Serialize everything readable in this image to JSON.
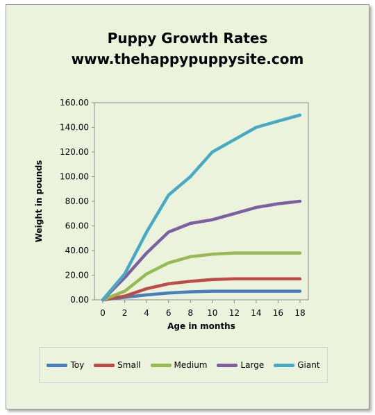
{
  "chart_data": {
    "type": "line",
    "title": "Puppy Growth Rates",
    "subtitle": "www.thehappypuppysite.com",
    "xlabel": "Age in months",
    "ylabel": "Weight in pounds",
    "xlim": [
      0,
      18
    ],
    "ylim": [
      0,
      160
    ],
    "x_ticks": [
      "0",
      "2",
      "4",
      "6",
      "8",
      "10",
      "12",
      "14",
      "16",
      "18"
    ],
    "y_ticks": [
      "0.00",
      "20.00",
      "40.00",
      "60.00",
      "80.00",
      "100.00",
      "120.00",
      "140.00",
      "160.00"
    ],
    "grid": false,
    "legend_position": "bottom",
    "x": [
      0,
      2,
      4,
      6,
      8,
      10,
      12,
      14,
      16,
      18
    ],
    "series": [
      {
        "name": "Toy",
        "color": "#4a7ebb",
        "values": [
          0,
          2,
          4,
          5.5,
          6.5,
          7,
          7,
          7,
          7,
          7
        ]
      },
      {
        "name": "Small",
        "color": "#be4b48",
        "values": [
          0,
          3,
          9,
          13,
          15,
          16.5,
          17,
          17,
          17,
          17
        ]
      },
      {
        "name": "Medium",
        "color": "#98b954",
        "values": [
          0,
          7,
          21,
          30,
          35,
          37,
          38,
          38,
          38,
          38
        ]
      },
      {
        "name": "Large",
        "color": "#7d60a0",
        "values": [
          0,
          18,
          38,
          55,
          62,
          65,
          70,
          75,
          78,
          80
        ]
      },
      {
        "name": "Giant",
        "color": "#46aac5",
        "values": [
          0,
          21,
          55,
          85,
          100,
          120,
          130,
          140,
          145,
          150
        ]
      }
    ]
  }
}
